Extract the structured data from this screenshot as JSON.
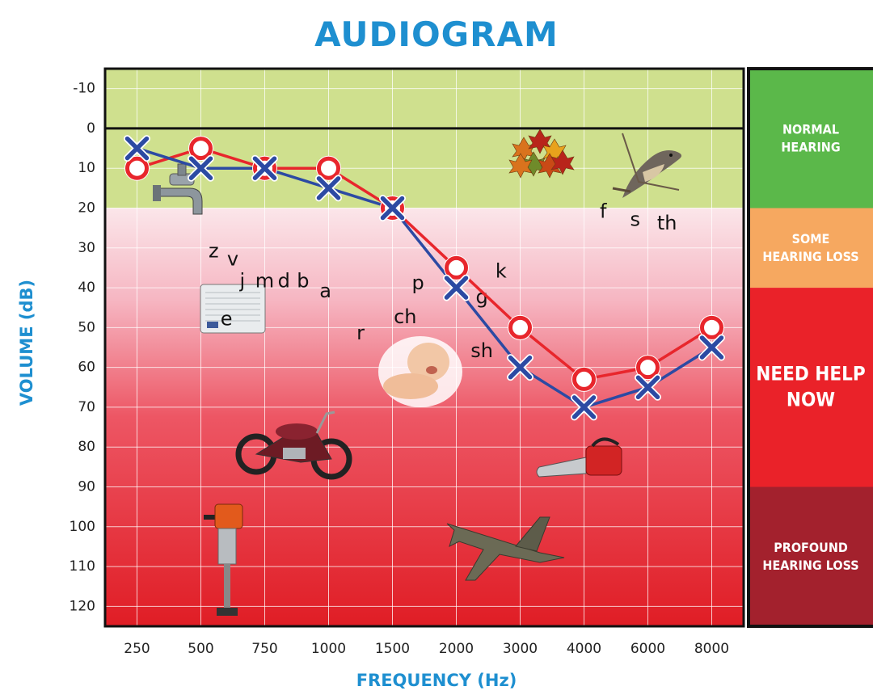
{
  "colors": {
    "title": "#1e8fd0",
    "left_line": "#e8262c",
    "right_line": "#2c4aa3",
    "normal": "#5bb84a",
    "some": "#f6a860",
    "need": "#ea2229",
    "profound": "#a3212d"
  },
  "chart_data": {
    "type": "line",
    "title": "AUDIOGRAM",
    "xlabel": "FREQUENCY (Hz)",
    "ylabel": "VOLUME (dB)",
    "categories": [
      "250",
      "500",
      "750",
      "1000",
      "1500",
      "2000",
      "3000",
      "4000",
      "6000",
      "8000"
    ],
    "y_ticks": [
      -10,
      0,
      10,
      20,
      30,
      40,
      50,
      60,
      70,
      80,
      90,
      100,
      110,
      120
    ],
    "ylim": [
      -15,
      125
    ],
    "y_inverted": true,
    "grid": true,
    "series": [
      {
        "marker": "circle",
        "color": "#e8262c",
        "values": [
          10,
          5,
          10,
          10,
          20,
          35,
          50,
          63,
          60,
          50
        ]
      },
      {
        "marker": "x",
        "color": "#2c4aa3",
        "values": [
          5,
          10,
          10,
          15,
          20,
          40,
          60,
          70,
          65,
          55
        ]
      }
    ],
    "zones": [
      {
        "label": "NORMAL HEARING",
        "range": [
          -15,
          20
        ],
        "color": "#5bb84a"
      },
      {
        "label": "SOME HEARING LOSS",
        "range": [
          20,
          40
        ],
        "color": "#f6a860"
      },
      {
        "label": "NEED HELP NOW",
        "range": [
          40,
          90
        ],
        "color": "#ea2229"
      },
      {
        "label": "PROFOUND HEARING LOSS",
        "range": [
          90,
          125
        ],
        "color": "#a3212d"
      }
    ],
    "speech_sounds": [
      {
        "text": "z",
        "x": 1.7,
        "y": 31
      },
      {
        "text": "v",
        "x": 2.0,
        "y": 33
      },
      {
        "text": "j",
        "x": 2.15,
        "y": 38.5
      },
      {
        "text": "m",
        "x": 2.5,
        "y": 38.5
      },
      {
        "text": "d",
        "x": 2.8,
        "y": 38.5
      },
      {
        "text": "b",
        "x": 3.1,
        "y": 38.5
      },
      {
        "text": "a",
        "x": 3.45,
        "y": 41
      },
      {
        "text": "e",
        "x": 1.9,
        "y": 48
      },
      {
        "text": "r",
        "x": 4.0,
        "y": 51.5
      },
      {
        "text": "p",
        "x": 4.9,
        "y": 39
      },
      {
        "text": "k",
        "x": 6.2,
        "y": 36
      },
      {
        "text": "ch",
        "x": 4.7,
        "y": 47.5
      },
      {
        "text": "g",
        "x": 5.9,
        "y": 42.5
      },
      {
        "text": "sh",
        "x": 5.9,
        "y": 56
      },
      {
        "text": "f",
        "x": 7.8,
        "y": 21
      },
      {
        "text": "s",
        "x": 8.3,
        "y": 23
      },
      {
        "text": "th",
        "x": 8.8,
        "y": 24
      }
    ]
  }
}
